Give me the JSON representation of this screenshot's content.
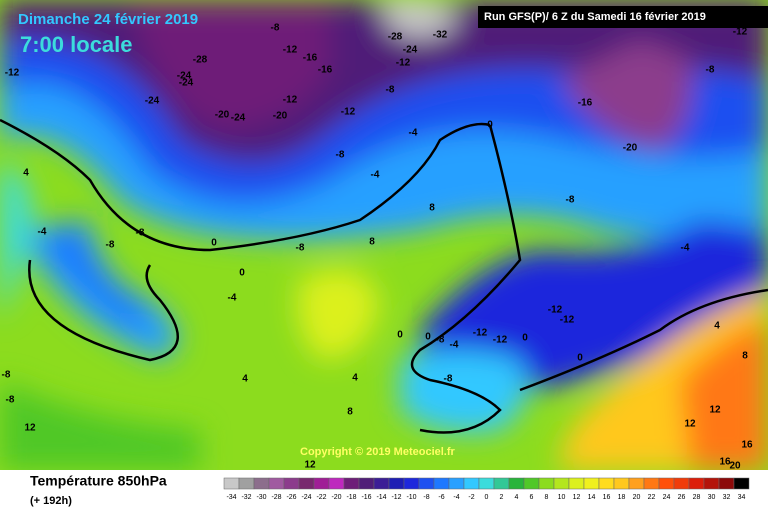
{
  "header": {
    "date": "Dimanche 24 février 2019",
    "time": "7:00 locale",
    "run": "Run GFS(P)/ 6 Z du Samedi 16 février 2019"
  },
  "copyright": "Copyright © 2019 Meteociel.fr",
  "footer": {
    "variable": "Température 850hPa",
    "lead": "(+ 192h)"
  },
  "legend": {
    "values": [
      -34,
      -32,
      -30,
      -28,
      -26,
      -24,
      -22,
      -20,
      -18,
      -16,
      -14,
      -12,
      -10,
      -8,
      -6,
      -4,
      -2,
      0,
      2,
      4,
      6,
      8,
      10,
      12,
      14,
      16,
      18,
      20,
      22,
      24,
      26,
      28,
      30,
      32,
      34
    ],
    "colors": [
      "#c8c8c8",
      "#a0a0a0",
      "#8c6e8c",
      "#a05aa0",
      "#8c3c8c",
      "#78286e",
      "#a01e96",
      "#be28be",
      "#6e1e78",
      "#501e78",
      "#3c1e96",
      "#1e1eb4",
      "#1e28dc",
      "#1e50f0",
      "#1e78ff",
      "#28a0ff",
      "#32c8ff",
      "#3cdcdc",
      "#32c896",
      "#28b43c",
      "#50c828",
      "#8cdc1e",
      "#b4e61e",
      "#dcf01e",
      "#f0f01e",
      "#ffdc1e",
      "#ffc81e",
      "#ffa01e",
      "#ff7814",
      "#ff500a",
      "#f03c0a",
      "#dc1e0a",
      "#b4140a",
      "#8c0a0a",
      "#000000"
    ]
  },
  "map_labels": [
    -12,
    -24,
    -24,
    -28,
    -24,
    -20,
    -24,
    -20,
    -12,
    -8,
    -12,
    -16,
    -16,
    -12,
    -12,
    -28,
    -24,
    -8,
    -32,
    -12,
    -8,
    -16,
    -8,
    -8,
    -20,
    -8,
    -8,
    -8,
    -4,
    -4,
    0,
    0,
    -4,
    -8,
    -8,
    -4,
    0,
    0,
    0,
    4,
    8,
    8,
    4,
    4,
    8,
    -12,
    -12,
    -12,
    -12,
    -8,
    -8,
    -4,
    0,
    0,
    -4,
    4,
    8,
    12,
    12,
    12,
    12,
    16,
    16,
    20
  ]
}
